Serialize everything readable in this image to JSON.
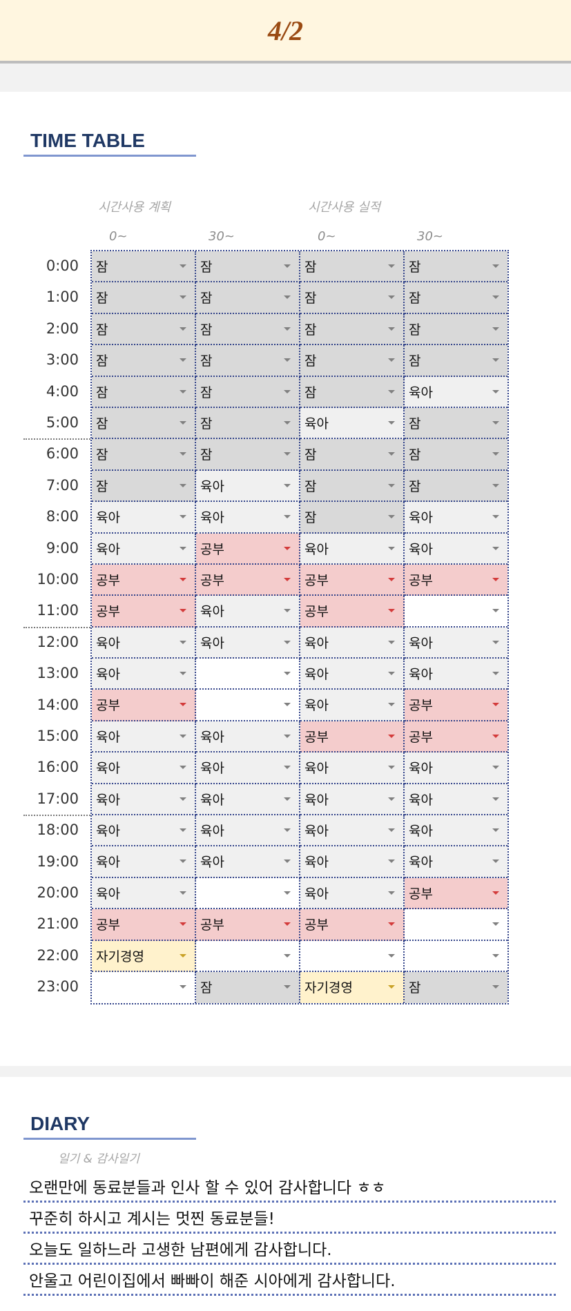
{
  "header": {
    "date": "4/2"
  },
  "timetable": {
    "title": "TIME TABLE",
    "plan_label": "시간사용 계획",
    "actual_label": "시간사용 실적",
    "col_labels": [
      "0~",
      "30~",
      "0~",
      "30~"
    ],
    "category_colors": {
      "잠": "#d9d9d9",
      "육아": "#f0f0f0",
      "공부": "#f4cccc",
      "자기경영": "#fff2cc",
      "": "#ffffff"
    },
    "arrow_colors": {
      "공부": "#d33b3b",
      "자기경영": "#c9a227",
      "default": "#808080"
    },
    "rows": [
      {
        "time": "0:00",
        "cells": [
          "잠",
          "잠",
          "잠",
          "잠"
        ]
      },
      {
        "time": "1:00",
        "cells": [
          "잠",
          "잠",
          "잠",
          "잠"
        ]
      },
      {
        "time": "2:00",
        "cells": [
          "잠",
          "잠",
          "잠",
          "잠"
        ]
      },
      {
        "time": "3:00",
        "cells": [
          "잠",
          "잠",
          "잠",
          "잠"
        ]
      },
      {
        "time": "4:00",
        "cells": [
          "잠",
          "잠",
          "잠",
          "육아"
        ]
      },
      {
        "time": "5:00",
        "cells": [
          "잠",
          "잠",
          "육아",
          "잠"
        ]
      },
      {
        "time": "6:00",
        "cells": [
          "잠",
          "잠",
          "잠",
          "잠"
        ]
      },
      {
        "time": "7:00",
        "cells": [
          "잠",
          "육아",
          "잠",
          "잠"
        ]
      },
      {
        "time": "8:00",
        "cells": [
          "육아",
          "육아",
          "잠",
          "육아"
        ]
      },
      {
        "time": "9:00",
        "cells": [
          "육아",
          "공부",
          "육아",
          "육아"
        ]
      },
      {
        "time": "10:00",
        "cells": [
          "공부",
          "공부",
          "공부",
          "공부"
        ]
      },
      {
        "time": "11:00",
        "cells": [
          "공부",
          "육아",
          "공부",
          ""
        ]
      },
      {
        "time": "12:00",
        "cells": [
          "육아",
          "육아",
          "육아",
          "육아"
        ]
      },
      {
        "time": "13:00",
        "cells": [
          "육아",
          "",
          "육아",
          "육아"
        ]
      },
      {
        "time": "14:00",
        "cells": [
          "공부",
          "",
          "육아",
          "공부"
        ]
      },
      {
        "time": "15:00",
        "cells": [
          "육아",
          "육아",
          "공부",
          "공부"
        ]
      },
      {
        "time": "16:00",
        "cells": [
          "육아",
          "육아",
          "육아",
          "육아"
        ]
      },
      {
        "time": "17:00",
        "cells": [
          "육아",
          "육아",
          "육아",
          "육아"
        ]
      },
      {
        "time": "18:00",
        "cells": [
          "육아",
          "육아",
          "육아",
          "육아"
        ]
      },
      {
        "time": "19:00",
        "cells": [
          "육아",
          "육아",
          "육아",
          "육아"
        ]
      },
      {
        "time": "20:00",
        "cells": [
          "육아",
          "",
          "육아",
          "공부"
        ]
      },
      {
        "time": "21:00",
        "cells": [
          "공부",
          "공부",
          "공부",
          ""
        ]
      },
      {
        "time": "22:00",
        "cells": [
          "자기경영",
          "",
          "",
          ""
        ]
      },
      {
        "time": "23:00",
        "cells": [
          "",
          "잠",
          "자기경영",
          "잠"
        ]
      }
    ]
  },
  "diary": {
    "title": "DIARY",
    "subtitle": "일기 & 감사일기",
    "entries": [
      "오랜만에 동료분들과 인사 할 수 있어 감사합니다 ㅎㅎ",
      "꾸준히 하시고 계시는 멋찐 동료분들!",
      "오늘도 일하느라 고생한 남편에게 감사합니다.",
      "안울고 어린이집에서 빠빠이 해준 시아에게 감사합니다."
    ]
  }
}
